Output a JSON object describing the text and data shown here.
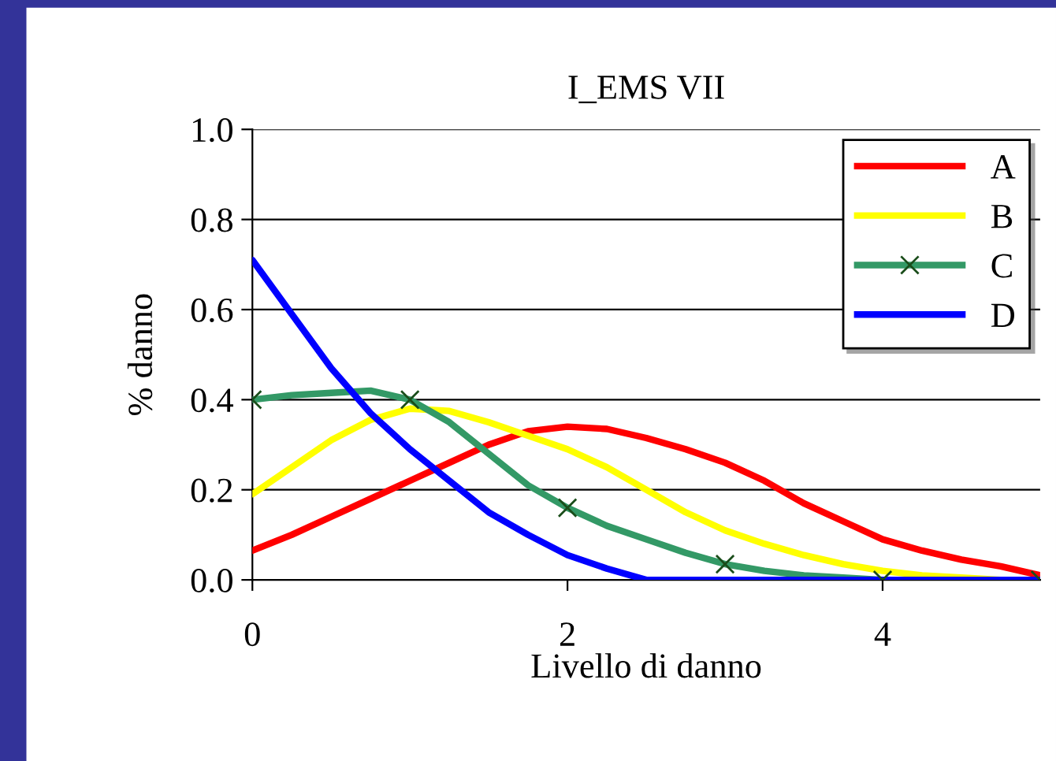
{
  "chart_data": {
    "type": "line",
    "title": "I_EMS VII",
    "xlabel": "Livello di danno",
    "ylabel": "% danno",
    "x": [
      0,
      0.25,
      0.5,
      0.75,
      1,
      1.25,
      1.5,
      1.75,
      2,
      2.25,
      2.5,
      2.75,
      3,
      3.25,
      3.5,
      3.75,
      4,
      4.25,
      4.5,
      4.75,
      5
    ],
    "series": [
      {
        "name": "A",
        "color": "#ff0000",
        "values": [
          0.065,
          0.1,
          0.14,
          0.18,
          0.22,
          0.26,
          0.3,
          0.33,
          0.34,
          0.335,
          0.315,
          0.29,
          0.26,
          0.22,
          0.17,
          0.13,
          0.09,
          0.065,
          0.045,
          0.03,
          0.01
        ]
      },
      {
        "name": "B",
        "color": "#ffff00",
        "values": [
          0.19,
          0.25,
          0.31,
          0.355,
          0.38,
          0.375,
          0.35,
          0.32,
          0.29,
          0.25,
          0.2,
          0.15,
          0.11,
          0.08,
          0.055,
          0.035,
          0.02,
          0.01,
          0.005,
          0.0,
          0.0
        ]
      },
      {
        "name": "C",
        "color": "#339966",
        "values": [
          0.4,
          0.41,
          0.415,
          0.42,
          0.4,
          0.35,
          0.28,
          0.21,
          0.16,
          0.12,
          0.09,
          0.06,
          0.035,
          0.02,
          0.01,
          0.005,
          0.0,
          0.0,
          null,
          null,
          null
        ]
      },
      {
        "type": "scatter",
        "color": "#1a4d1a",
        "marker": "cross",
        "x": [
          0,
          1,
          2,
          3,
          4,
          5
        ],
        "values": [
          0.4,
          0.4,
          0.16,
          0.035,
          0.0,
          0.0
        ]
      },
      {
        "name": "D",
        "color": "#0000ff",
        "values": [
          0.71,
          0.59,
          0.47,
          0.37,
          0.29,
          0.22,
          0.15,
          0.1,
          0.055,
          0.025,
          0.0,
          0.0,
          0.0,
          0.0,
          0.0,
          0.0,
          0.0,
          0.0,
          0.0,
          0.0,
          0.0
        ]
      }
    ],
    "xlim": [
      0,
      5
    ],
    "xticks": [
      0,
      2,
      4
    ],
    "ylim": [
      0,
      1
    ],
    "yticks": [
      {
        "value": 0,
        "label": "0.0"
      },
      {
        "value": 0.2,
        "label": "0.2"
      },
      {
        "value": 0.4,
        "label": "0.4"
      },
      {
        "value": 0.6,
        "label": "0.6"
      },
      {
        "value": 0.8,
        "label": "0.8"
      },
      {
        "value": 1,
        "label": "1.0"
      }
    ],
    "grid": "y",
    "legend": "top right",
    "line_style": "solid"
  }
}
